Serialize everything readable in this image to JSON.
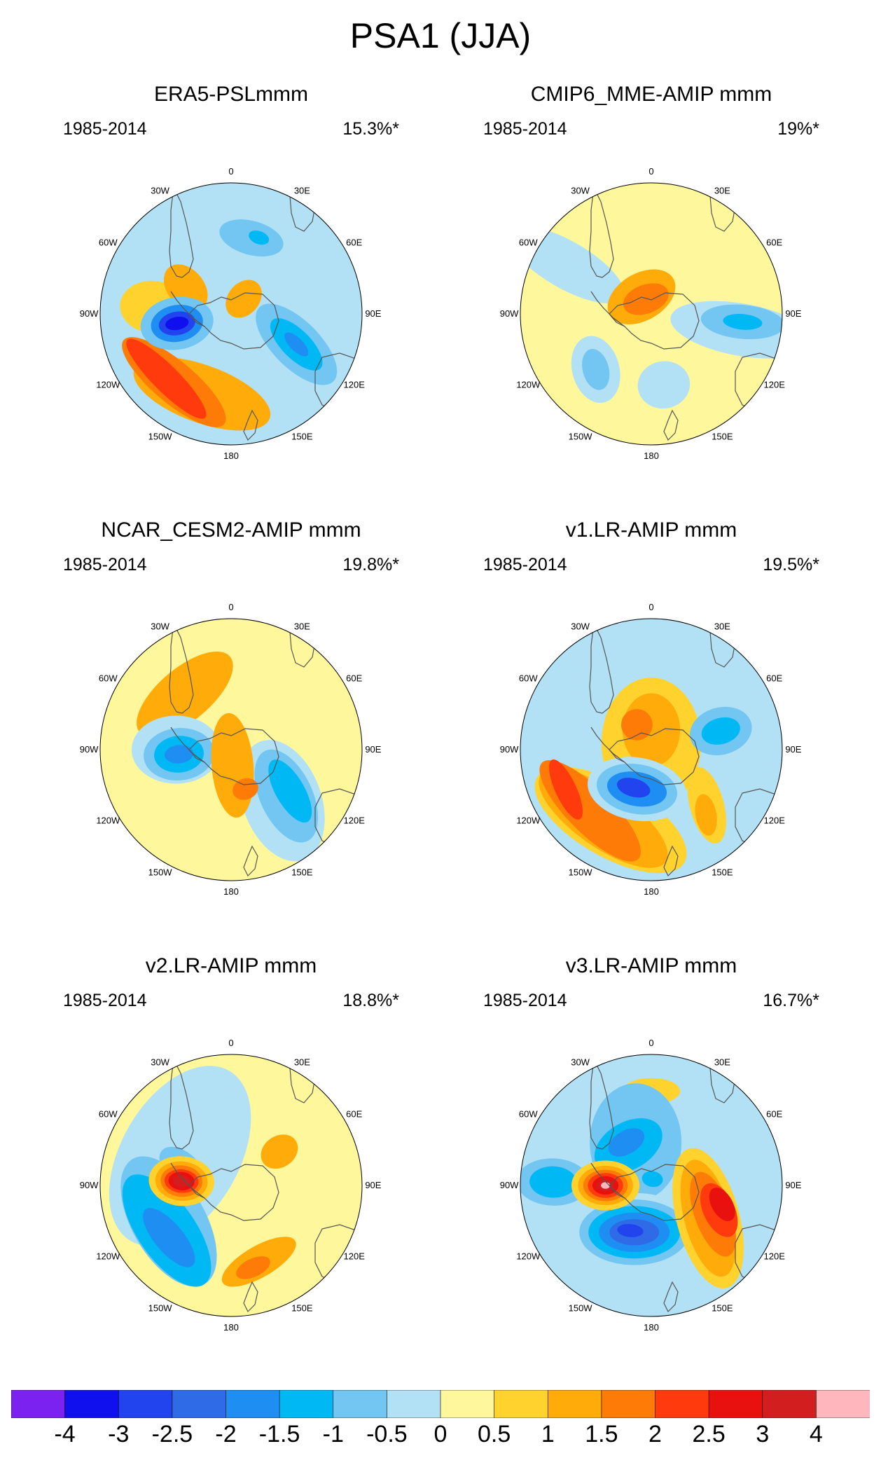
{
  "figure_title": "PSA1 (JJA)",
  "chart_data": {
    "type": "heatmap",
    "projection": "south-polar stereographic",
    "variable": "PSL",
    "lon_labels": [
      "0",
      "30E",
      "60E",
      "90E",
      "120E",
      "150E",
      "180",
      "150W",
      "120W",
      "90W",
      "60W",
      "30W"
    ],
    "colorbar": {
      "labels": [
        "-4",
        "-3",
        "-2.5",
        "-2",
        "-1.5",
        "-1",
        "-0.5",
        "0",
        "0.5",
        "1",
        "1.5",
        "2",
        "2.5",
        "3",
        "4"
      ],
      "colors": [
        "#7b22f0",
        "#1010ee",
        "#2244ee",
        "#2f6be6",
        "#1f8ef2",
        "#00b9f4",
        "#72c6f1",
        "#b2e0f5",
        "#fff79c",
        "#ffd22e",
        "#ffab0a",
        "#ff7b08",
        "#ff3a0c",
        "#e8110f",
        "#d21e1e",
        "#ffb6bd"
      ]
    },
    "panels": [
      {
        "title": "ERA5-PSLmmm",
        "period": "1985-2014",
        "variance": "15.3%*",
        "background": "#b2e0f5",
        "features": [
          {
            "value": 1.0,
            "lon": 200,
            "r": 0.65,
            "a": 0.22,
            "b": 0.55,
            "rot": 90
          },
          {
            "value": 1.5,
            "lon": 220,
            "r": 0.68,
            "a": 0.16,
            "b": 0.5,
            "rot": 90
          },
          {
            "value": 2.0,
            "lon": 225,
            "r": 0.7,
            "a": 0.1,
            "b": 0.42,
            "rot": 90
          },
          {
            "value": 0.5,
            "lon": 275,
            "r": 0.6,
            "a": 0.2,
            "b": 0.25,
            "rot": 0
          },
          {
            "value": 1.0,
            "lon": 300,
            "r": 0.4,
            "a": 0.14,
            "b": 0.2,
            "rot": 20
          },
          {
            "value": 1.0,
            "lon": 40,
            "r": 0.15,
            "a": 0.12,
            "b": 0.16,
            "rot": 0
          },
          {
            "value": -1.0,
            "lon": 260,
            "r": 0.42,
            "a": 0.2,
            "b": 0.28,
            "rot": 0
          },
          {
            "value": -2.0,
            "lon": 260,
            "r": 0.42,
            "a": 0.14,
            "b": 0.2,
            "rot": 0
          },
          {
            "value": -3.0,
            "lon": 260,
            "r": 0.42,
            "a": 0.09,
            "b": 0.14,
            "rot": 0
          },
          {
            "value": -4.0,
            "lon": 260,
            "r": 0.42,
            "a": 0.05,
            "b": 0.09,
            "rot": 0
          },
          {
            "value": -1.0,
            "lon": 15,
            "r": 0.6,
            "a": 0.25,
            "b": 0.13,
            "rot": 0
          },
          {
            "value": -1.5,
            "lon": 20,
            "r": 0.62,
            "a": 0.08,
            "b": 0.05,
            "rot": 0
          },
          {
            "value": -1.0,
            "lon": 115,
            "r": 0.55,
            "a": 0.18,
            "b": 0.4,
            "rot": 20
          },
          {
            "value": -1.5,
            "lon": 115,
            "r": 0.55,
            "a": 0.11,
            "b": 0.26,
            "rot": 20
          },
          {
            "value": -2.0,
            "lon": 115,
            "r": 0.55,
            "a": 0.05,
            "b": 0.12,
            "rot": 20
          }
        ]
      },
      {
        "title": "CMIP6_MME-AMIP  mmm",
        "period": "1985-2014",
        "variance": "19%*",
        "background": "#fff79c",
        "features": [
          {
            "value": -0.5,
            "lon": 300,
            "r": 0.75,
            "a": 0.18,
            "b": 0.5,
            "rot": 0
          },
          {
            "value": -0.5,
            "lon": 100,
            "r": 0.7,
            "a": 0.2,
            "b": 0.55,
            "rot": 0
          },
          {
            "value": -1.0,
            "lon": 95,
            "r": 0.7,
            "a": 0.13,
            "b": 0.32,
            "rot": 0
          },
          {
            "value": -1.5,
            "lon": 95,
            "r": 0.7,
            "a": 0.06,
            "b": 0.15,
            "rot": 0
          },
          {
            "value": -0.5,
            "lon": 225,
            "r": 0.6,
            "a": 0.26,
            "b": 0.18,
            "rot": 30
          },
          {
            "value": -1.0,
            "lon": 225,
            "r": 0.6,
            "a": 0.16,
            "b": 0.1,
            "rot": 30
          },
          {
            "value": 1.0,
            "lon": 330,
            "r": 0.15,
            "a": 0.28,
            "b": 0.18,
            "rot": 0
          },
          {
            "value": 1.5,
            "lon": 340,
            "r": 0.12,
            "a": 0.18,
            "b": 0.11,
            "rot": 0
          },
          {
            "value": -0.5,
            "lon": 170,
            "r": 0.55,
            "a": 0.2,
            "b": 0.18,
            "rot": 0
          }
        ]
      },
      {
        "title": "NCAR_CESM2-AMIP  mmm",
        "period": "1985-2014",
        "variance": "19.8%*",
        "background": "#fff79c",
        "features": [
          {
            "value": 1.0,
            "lon": 320,
            "r": 0.55,
            "a": 0.2,
            "b": 0.45,
            "rot": 90
          },
          {
            "value": -0.5,
            "lon": 270,
            "r": 0.42,
            "a": 0.26,
            "b": 0.34,
            "rot": 0
          },
          {
            "value": -1.0,
            "lon": 265,
            "r": 0.4,
            "a": 0.2,
            "b": 0.27,
            "rot": 0
          },
          {
            "value": -1.5,
            "lon": 265,
            "r": 0.4,
            "a": 0.14,
            "b": 0.19,
            "rot": 0
          },
          {
            "value": -2.0,
            "lon": 265,
            "r": 0.4,
            "a": 0.07,
            "b": 0.11,
            "rot": 0
          },
          {
            "value": -0.5,
            "lon": 135,
            "r": 0.55,
            "a": 0.3,
            "b": 0.48,
            "rot": 25
          },
          {
            "value": -1.0,
            "lon": 130,
            "r": 0.55,
            "a": 0.2,
            "b": 0.38,
            "rot": 25
          },
          {
            "value": -1.5,
            "lon": 125,
            "r": 0.55,
            "a": 0.11,
            "b": 0.27,
            "rot": 25
          },
          {
            "value": 1.0,
            "lon": 175,
            "r": 0.12,
            "a": 0.16,
            "b": 0.4,
            "rot": 0
          },
          {
            "value": 1.5,
            "lon": 160,
            "r": 0.32,
            "a": 0.1,
            "b": 0.08,
            "rot": 0
          }
        ]
      },
      {
        "title": "v1.LR-AMIP  mmm",
        "period": "1985-2014",
        "variance": "19.5%*",
        "background": "#b2e0f5",
        "features": [
          {
            "value": 0.5,
            "lon": 0,
            "r": 0.05,
            "a": 0.38,
            "b": 0.5,
            "rot": 0
          },
          {
            "value": 1.0,
            "lon": 0,
            "r": 0.15,
            "a": 0.22,
            "b": 0.28,
            "rot": 0
          },
          {
            "value": 1.5,
            "lon": 330,
            "r": 0.22,
            "a": 0.12,
            "b": 0.12,
            "rot": 0
          },
          {
            "value": 0.5,
            "lon": 210,
            "r": 0.62,
            "a": 0.28,
            "b": 0.65,
            "rot": 90
          },
          {
            "value": 1.0,
            "lon": 215,
            "r": 0.64,
            "a": 0.22,
            "b": 0.58,
            "rot": 90
          },
          {
            "value": 1.5,
            "lon": 225,
            "r": 0.66,
            "a": 0.17,
            "b": 0.52,
            "rot": 90
          },
          {
            "value": 2.0,
            "lon": 245,
            "r": 0.72,
            "a": 0.08,
            "b": 0.25,
            "rot": 90
          },
          {
            "value": -0.5,
            "lon": 200,
            "r": 0.32,
            "a": 0.24,
            "b": 0.38,
            "rot": 80
          },
          {
            "value": -1.0,
            "lon": 200,
            "r": 0.32,
            "a": 0.19,
            "b": 0.31,
            "rot": 80
          },
          {
            "value": -2.0,
            "lon": 200,
            "r": 0.32,
            "a": 0.13,
            "b": 0.23,
            "rot": 80
          },
          {
            "value": -3.0,
            "lon": 205,
            "r": 0.32,
            "a": 0.07,
            "b": 0.13,
            "rot": 80
          },
          {
            "value": -1.0,
            "lon": 75,
            "r": 0.55,
            "a": 0.18,
            "b": 0.24,
            "rot": 0
          },
          {
            "value": -1.5,
            "lon": 75,
            "r": 0.55,
            "a": 0.1,
            "b": 0.15,
            "rot": 0
          },
          {
            "value": 0.5,
            "lon": 135,
            "r": 0.6,
            "a": 0.13,
            "b": 0.3,
            "rot": 30
          },
          {
            "value": 1.0,
            "lon": 140,
            "r": 0.65,
            "a": 0.08,
            "b": 0.16,
            "rot": 30
          }
        ]
      },
      {
        "title": "v2.LR-AMIP  mmm",
        "period": "1985-2014",
        "variance": "18.8%*",
        "background": "#fff79c",
        "features": [
          {
            "value": -0.5,
            "lon": 300,
            "r": 0.45,
            "a": 0.45,
            "b": 0.75,
            "rot": 90
          },
          {
            "value": -1.0,
            "lon": 290,
            "r": 0.4,
            "a": 0.12,
            "b": 0.2,
            "rot": 20
          },
          {
            "value": -1.0,
            "lon": 240,
            "r": 0.55,
            "a": 0.28,
            "b": 0.55,
            "rot": 90
          },
          {
            "value": -1.5,
            "lon": 235,
            "r": 0.6,
            "a": 0.22,
            "b": 0.5,
            "rot": 90
          },
          {
            "value": -2.0,
            "lon": 230,
            "r": 0.62,
            "a": 0.11,
            "b": 0.28,
            "rot": 90
          },
          {
            "value": 1.0,
            "lon": 55,
            "r": 0.45,
            "a": 0.12,
            "b": 0.15,
            "rot": 0
          },
          {
            "value": 0.5,
            "lon": 275,
            "r": 0.38,
            "a": 0.19,
            "b": 0.25,
            "rot": 0
          },
          {
            "value": 1.0,
            "lon": 275,
            "r": 0.38,
            "a": 0.15,
            "b": 0.2,
            "rot": 0
          },
          {
            "value": 1.5,
            "lon": 275,
            "r": 0.38,
            "a": 0.12,
            "b": 0.16,
            "rot": 0
          },
          {
            "value": 2.0,
            "lon": 275,
            "r": 0.38,
            "a": 0.09,
            "b": 0.13,
            "rot": 0
          },
          {
            "value": 2.5,
            "lon": 275,
            "r": 0.38,
            "a": 0.07,
            "b": 0.1,
            "rot": 0
          },
          {
            "value": 3.0,
            "lon": 275,
            "r": 0.38,
            "a": 0.045,
            "b": 0.065,
            "rot": 0
          },
          {
            "value": 1.0,
            "lon": 160,
            "r": 0.62,
            "a": 0.12,
            "b": 0.32,
            "rot": 80
          },
          {
            "value": 1.5,
            "lon": 165,
            "r": 0.65,
            "a": 0.07,
            "b": 0.14,
            "rot": 80
          }
        ]
      },
      {
        "title": "v3.LR-AMIP  mmm",
        "period": "1985-2014",
        "variance": "16.7%*",
        "background": "#b2e0f5",
        "features": [
          {
            "value": 0.5,
            "lon": 0,
            "r": 0.72,
            "a": 0.1,
            "b": 0.22,
            "rot": 90
          },
          {
            "value": -1.0,
            "lon": 340,
            "r": 0.35,
            "a": 0.35,
            "b": 0.45,
            "rot": 20
          },
          {
            "value": -1.5,
            "lon": 330,
            "r": 0.35,
            "a": 0.18,
            "b": 0.28,
            "rot": 90
          },
          {
            "value": -2.0,
            "lon": 330,
            "r": 0.38,
            "a": 0.09,
            "b": 0.15,
            "rot": 90
          },
          {
            "value": -1.5,
            "lon": 10,
            "r": 0.05,
            "a": 0.08,
            "b": 0.06,
            "rot": 0
          },
          {
            "value": -1.0,
            "lon": 272,
            "r": 0.75,
            "a": 0.18,
            "b": 0.28,
            "rot": 0
          },
          {
            "value": -1.5,
            "lon": 272,
            "r": 0.75,
            "a": 0.12,
            "b": 0.18,
            "rot": 0
          },
          {
            "value": -0.5,
            "lon": 200,
            "r": 0.38,
            "a": 0.3,
            "b": 0.5,
            "rot": 70
          },
          {
            "value": -1.0,
            "lon": 200,
            "r": 0.38,
            "a": 0.25,
            "b": 0.42,
            "rot": 70
          },
          {
            "value": -1.5,
            "lon": 200,
            "r": 0.38,
            "a": 0.2,
            "b": 0.35,
            "rot": 70
          },
          {
            "value": -2.0,
            "lon": 200,
            "r": 0.38,
            "a": 0.15,
            "b": 0.27,
            "rot": 70
          },
          {
            "value": -2.5,
            "lon": 200,
            "r": 0.38,
            "a": 0.1,
            "b": 0.19,
            "rot": 70
          },
          {
            "value": -3.0,
            "lon": 205,
            "r": 0.38,
            "a": 0.05,
            "b": 0.1,
            "rot": 70
          },
          {
            "value": 0.5,
            "lon": 270,
            "r": 0.35,
            "a": 0.19,
            "b": 0.26,
            "rot": 0
          },
          {
            "value": 1.0,
            "lon": 270,
            "r": 0.35,
            "a": 0.15,
            "b": 0.21,
            "rot": 0
          },
          {
            "value": 1.5,
            "lon": 270,
            "r": 0.35,
            "a": 0.12,
            "b": 0.17,
            "rot": 0
          },
          {
            "value": 2.0,
            "lon": 270,
            "r": 0.35,
            "a": 0.095,
            "b": 0.135,
            "rot": 0
          },
          {
            "value": 2.5,
            "lon": 270,
            "r": 0.35,
            "a": 0.07,
            "b": 0.1,
            "rot": 0
          },
          {
            "value": 3.0,
            "lon": 270,
            "r": 0.35,
            "a": 0.045,
            "b": 0.065,
            "rot": 0
          },
          {
            "value": 4.0,
            "lon": 270,
            "r": 0.35,
            "a": 0.025,
            "b": 0.035,
            "rot": 0
          },
          {
            "value": 0.5,
            "lon": 120,
            "r": 0.5,
            "a": 0.24,
            "b": 0.55,
            "rot": 45
          },
          {
            "value": 1.0,
            "lon": 120,
            "r": 0.5,
            "a": 0.18,
            "b": 0.46,
            "rot": 45
          },
          {
            "value": 1.5,
            "lon": 115,
            "r": 0.52,
            "a": 0.14,
            "b": 0.34,
            "rot": 45
          },
          {
            "value": 2.0,
            "lon": 110,
            "r": 0.55,
            "a": 0.12,
            "b": 0.22,
            "rot": 45
          },
          {
            "value": 2.5,
            "lon": 105,
            "r": 0.56,
            "a": 0.08,
            "b": 0.14,
            "rot": 45
          }
        ]
      }
    ]
  }
}
